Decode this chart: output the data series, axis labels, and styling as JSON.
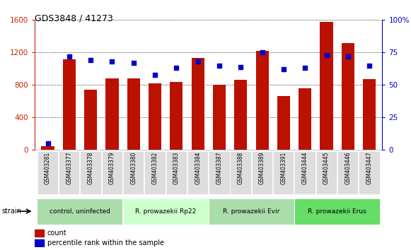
{
  "title": "GDS3848 / 41273",
  "samples": [
    "GSM403281",
    "GSM403377",
    "GSM403378",
    "GSM403379",
    "GSM403380",
    "GSM403382",
    "GSM403383",
    "GSM403384",
    "GSM403387",
    "GSM403388",
    "GSM403389",
    "GSM403391",
    "GSM403444",
    "GSM403445",
    "GSM403446",
    "GSM403447"
  ],
  "counts": [
    50,
    1120,
    740,
    880,
    880,
    820,
    840,
    1130,
    800,
    860,
    1220,
    660,
    760,
    1580,
    1320,
    870
  ],
  "percentiles": [
    5,
    72,
    69,
    68,
    67,
    58,
    63,
    68,
    65,
    64,
    75,
    62,
    63,
    73,
    72,
    65
  ],
  "groups": [
    {
      "label": "control, uninfected",
      "start": 0,
      "end": 4,
      "color": "#99ee99"
    },
    {
      "label": "R. prowazekii Rp22",
      "start": 4,
      "end": 8,
      "color": "#bbffbb"
    },
    {
      "label": "R. prowazekii Evir",
      "start": 8,
      "end": 12,
      "color": "#99ee99"
    },
    {
      "label": "R. prowazekii Erus",
      "start": 12,
      "end": 16,
      "color": "#77dd77"
    }
  ],
  "ylim_left": [
    0,
    1600
  ],
  "ylim_right": [
    0,
    100
  ],
  "yticks_left": [
    0,
    400,
    800,
    1200,
    1600
  ],
  "yticks_right": [
    0,
    25,
    50,
    75,
    100
  ],
  "bar_color": "#bb1100",
  "dot_color": "#0000cc",
  "background_color": "#ffffff",
  "left_tick_color": "#cc2200",
  "right_tick_color": "#0000cc",
  "strain_label": "strain",
  "legend_count": "count",
  "legend_percentile": "percentile rank within the sample"
}
